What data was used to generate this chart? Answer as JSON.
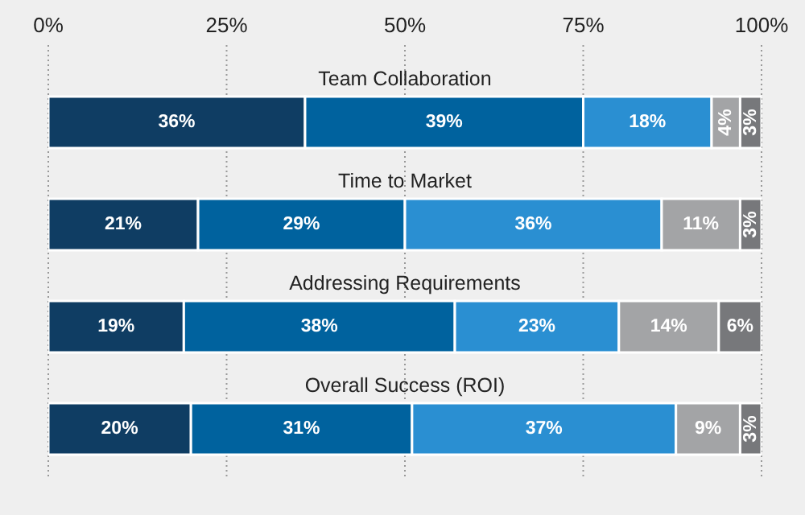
{
  "chart_data": {
    "type": "bar",
    "orientation": "horizontal",
    "stacked": true,
    "categories": [
      "Team Collaboration",
      "Time to Market",
      "Addressing Requirements",
      "Overall Success (ROI)"
    ],
    "series": [
      {
        "color": "#0f3d63",
        "values": [
          36,
          21,
          19,
          20
        ],
        "value_labels": [
          "36%",
          "21%",
          "19%",
          "20%"
        ]
      },
      {
        "color": "#00629e",
        "values": [
          39,
          29,
          38,
          31
        ],
        "value_labels": [
          "39%",
          "29%",
          "38%",
          "31%"
        ]
      },
      {
        "color": "#2a8fd2",
        "values": [
          18,
          36,
          23,
          37
        ],
        "value_labels": [
          "18%",
          "36%",
          "23%",
          "37%"
        ]
      },
      {
        "color": "#a3a4a6",
        "values": [
          4,
          11,
          14,
          9
        ],
        "value_labels": [
          "4%",
          "11%",
          "14%",
          "9%"
        ]
      },
      {
        "color": "#77787b",
        "values": [
          3,
          3,
          6,
          3
        ],
        "value_labels": [
          "3%",
          "3%",
          "6%",
          "3%"
        ]
      }
    ],
    "xlim": [
      0,
      100
    ],
    "xticks": [
      {
        "value": 0,
        "label": "0%"
      },
      {
        "value": 25,
        "label": "25%"
      },
      {
        "value": 50,
        "label": "50%"
      },
      {
        "value": 75,
        "label": "75%"
      },
      {
        "value": 100,
        "label": "100%"
      }
    ],
    "grid": "x"
  }
}
